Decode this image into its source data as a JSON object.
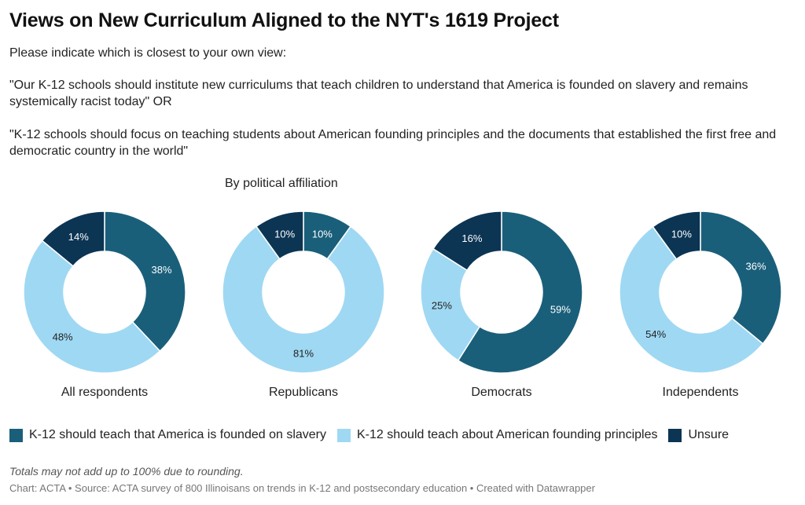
{
  "title": "Views on New Curriculum Aligned to the NYT's 1619 Project",
  "description": {
    "prompt": "Please indicate which is closest to your own view:",
    "option_a": "\"Our K-12 schools should institute new curriculums that teach children to understand that America is founded on slavery and remains systemically racist today\" OR",
    "option_b": "\"K-12 schools should focus on teaching students about American founding principles and the documents that established the first free and democratic country in the world\""
  },
  "subheading": "By political affiliation",
  "legend": [
    {
      "label": "K-12 should teach that America is founded on slavery",
      "color": "#1a5f7a"
    },
    {
      "label": "K-12 should teach about American founding principles",
      "color": "#9fd8f3"
    },
    {
      "label": "Unsure",
      "color": "#0c3554"
    }
  ],
  "note": "Totals may not add up to 100% due to rounding.",
  "footer": "Chart: ACTA • Source: ACTA survey of 800 Illinoisans on trends in K-12 and postsecondary education • Created with Datawrapper",
  "chart_data": {
    "type": "pie",
    "variant": "donut",
    "series_names": [
      "K-12 should teach that America is founded on slavery",
      "K-12 should teach about American founding principles",
      "Unsure"
    ],
    "colors": [
      "#1a5f7a",
      "#9fd8f3",
      "#0c3554"
    ],
    "label_colors": [
      "#ffffff",
      "#222222",
      "#ffffff"
    ],
    "charts": [
      {
        "name": "All respondents",
        "values": [
          38,
          48,
          14
        ]
      },
      {
        "name": "Republicans",
        "values": [
          10,
          81,
          10
        ]
      },
      {
        "name": "Democrats",
        "values": [
          59,
          25,
          16
        ]
      },
      {
        "name": "Independents",
        "values": [
          36,
          54,
          10
        ]
      }
    ]
  }
}
